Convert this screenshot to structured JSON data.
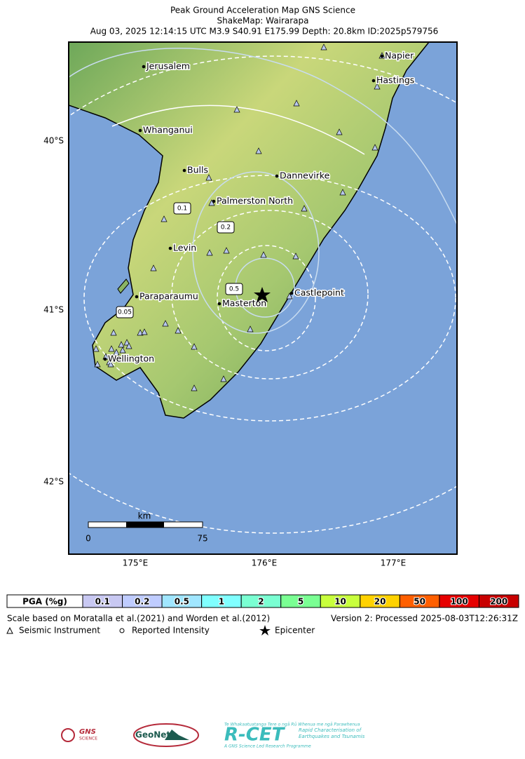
{
  "header": {
    "title": "Peak Ground Acceleration Map GNS Science",
    "subtitle": "ShakeMap: Wairarapa",
    "event": "Aug 03, 2025 12:14:15 UTC M3.9 S40.91 E175.99 Depth: 20.8km ID:2025p579756"
  },
  "map": {
    "cities": [
      "Jerusalem",
      "Napier",
      "Hastings",
      "Whanganui",
      "Bulls",
      "Dannevirke",
      "Palmerston North",
      "Levin",
      "Paraparaumu",
      "Masterton",
      "Castlepoint",
      "Wellington"
    ],
    "lat_labels": [
      "40°S",
      "41°S",
      "42°S"
    ],
    "lon_labels": [
      "175°E",
      "176°E",
      "177°E"
    ],
    "contour_labels": [
      "0.1",
      "0.2",
      "0.5",
      "0.05"
    ],
    "scale_bar": {
      "unit": "km",
      "start": 0,
      "end": 75
    }
  },
  "legend": {
    "label": "PGA (%g)",
    "bins": [
      {
        "value": 0.1,
        "color": "#c8c8f2"
      },
      {
        "value": 0.2,
        "color": "#bfccff"
      },
      {
        "value": 0.5,
        "color": "#a0e6ff"
      },
      {
        "value": 1,
        "color": "#80ffff"
      },
      {
        "value": 2,
        "color": "#7affd2"
      },
      {
        "value": 5,
        "color": "#7aff93"
      },
      {
        "value": 10,
        "color": "#c8ff3c"
      },
      {
        "value": 20,
        "color": "#ffd200"
      },
      {
        "value": 50,
        "color": "#ff5f00"
      },
      {
        "value": 100,
        "color": "#e60000"
      },
      {
        "value": 200,
        "color": "#c80000"
      }
    ]
  },
  "footer": {
    "scale_note": "Scale based on Moratalla et al.(2021) and Worden et al.(2012)",
    "version": "Version 2: Processed 2025-08-03T12:26:31Z",
    "instrument": "Seismic Instrument",
    "intensity": "Reported Intensity",
    "epicenter": "Epicenter"
  },
  "logos": {
    "gns": "GNS",
    "gns_sub": "SCIENCE",
    "geonet": "GeoNet",
    "rcet": "R-CET",
    "rcet_top": "Te Whakaatuatanga Tere o ngā Rū Whenua me ngā Parawhenua",
    "rcet_side": "Rapid Characterisation of Earthquakes and Tsunamis",
    "rcet_bottom": "A GNS Science Led Research Programme"
  }
}
